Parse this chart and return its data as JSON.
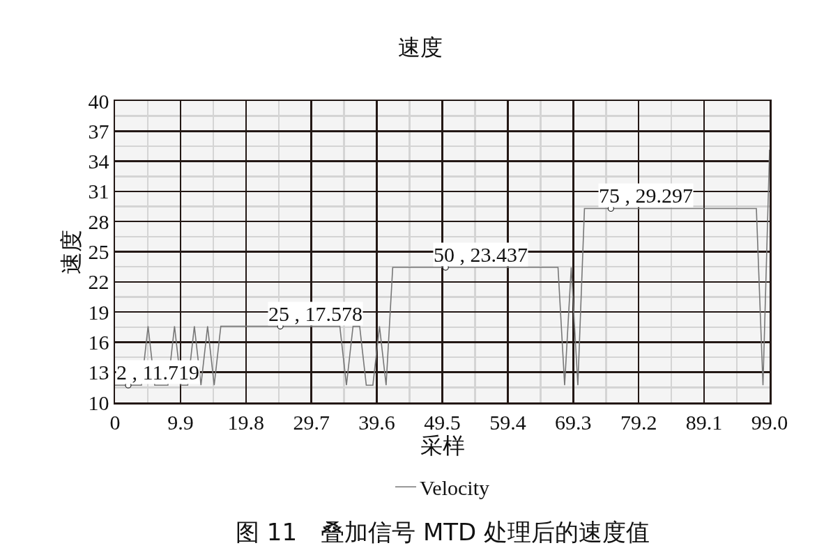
{
  "chart_data": {
    "type": "line",
    "title": "速度",
    "xlabel": "采样",
    "ylabel": "速度",
    "x": [
      0,
      1,
      2,
      3,
      4,
      5,
      6,
      7,
      8,
      9,
      10,
      11,
      12,
      13,
      14,
      15,
      16,
      17,
      18,
      19,
      20,
      21,
      22,
      23,
      24,
      25,
      26,
      27,
      28,
      29,
      30,
      31,
      32,
      33,
      34,
      35,
      36,
      37,
      38,
      39,
      40,
      41,
      42,
      43,
      44,
      45,
      46,
      47,
      48,
      49,
      50,
      51,
      52,
      53,
      54,
      55,
      56,
      57,
      58,
      59,
      60,
      61,
      62,
      63,
      64,
      65,
      66,
      67,
      68,
      69,
      70,
      71,
      72,
      73,
      74,
      75,
      76,
      77,
      78,
      79,
      80,
      81,
      82,
      83,
      84,
      85,
      86,
      87,
      88,
      89,
      90,
      91,
      92,
      93,
      94,
      95,
      96,
      97,
      98,
      99
    ],
    "series": [
      {
        "name": "Velocity",
        "color": "#777777",
        "values": [
          11.719,
          11.719,
          11.719,
          11.719,
          11.719,
          17.578,
          11.719,
          11.719,
          11.719,
          17.578,
          11.719,
          11.719,
          17.578,
          11.719,
          17.578,
          11.719,
          17.578,
          17.578,
          17.578,
          17.578,
          17.578,
          17.578,
          17.578,
          17.578,
          17.578,
          17.578,
          17.578,
          17.578,
          17.578,
          17.578,
          17.578,
          17.578,
          17.578,
          17.578,
          17.578,
          11.719,
          17.578,
          17.578,
          11.719,
          11.719,
          17.578,
          11.719,
          23.437,
          23.437,
          23.437,
          23.437,
          23.437,
          23.437,
          23.437,
          23.437,
          23.437,
          23.437,
          23.437,
          23.437,
          23.437,
          23.437,
          23.437,
          23.437,
          23.437,
          23.437,
          23.437,
          23.437,
          23.437,
          23.437,
          23.437,
          23.437,
          23.437,
          23.437,
          11.719,
          23.437,
          11.719,
          29.297,
          29.297,
          29.297,
          29.297,
          29.297,
          29.297,
          29.297,
          29.297,
          29.297,
          29.297,
          29.297,
          29.297,
          29.297,
          29.297,
          29.297,
          29.297,
          29.297,
          29.297,
          29.297,
          29.297,
          29.297,
          29.297,
          29.297,
          29.297,
          29.297,
          29.297,
          29.297,
          11.719,
          35.156
        ]
      }
    ],
    "xlim": [
      0,
      99
    ],
    "xticks": [
      0,
      9.9,
      19.8,
      29.7,
      39.6,
      49.5,
      59.4,
      69.3,
      79.2,
      89.1,
      {
        "value": 99,
        "label": "99.0"
      }
    ],
    "ylim": [
      10,
      40
    ],
    "yticks": [
      10,
      13,
      16,
      19,
      22,
      25,
      28,
      31,
      34,
      37,
      40
    ],
    "grid": true,
    "legend": "bottom",
    "marker": "none",
    "line_style": "solid",
    "annotations": [
      {
        "text": "2 , 11.719",
        "x": 2,
        "y": 11.719
      },
      {
        "text": "25 , 17.578",
        "x": 25,
        "y": 17.578
      },
      {
        "text": "50 , 23.437",
        "x": 50,
        "y": 23.437
      },
      {
        "text": "75 , 29.297",
        "x": 75,
        "y": 29.297
      },
      "图 11　叠加信号 MTD 处理后的速度值"
    ]
  }
}
